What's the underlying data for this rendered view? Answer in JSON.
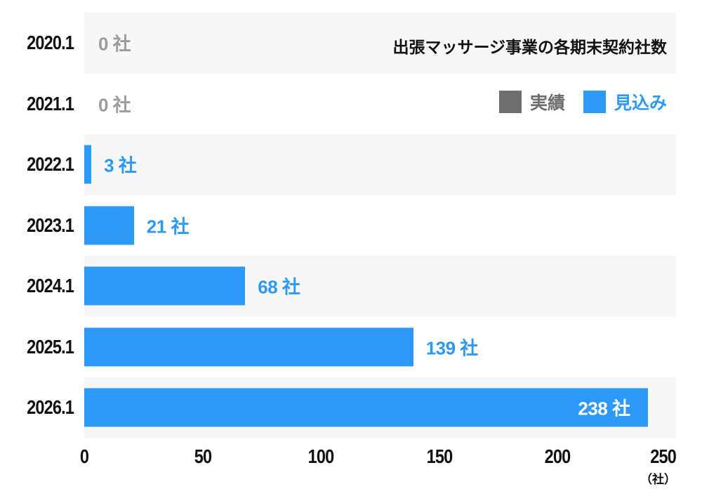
{
  "chart_data": {
    "type": "bar",
    "orientation": "horizontal",
    "title": "出張マッサージ事業の各期末契約社数",
    "categories": [
      "2020.1",
      "2021.1",
      "2022.1",
      "2023.1",
      "2024.1",
      "2025.1",
      "2026.1"
    ],
    "values": [
      0,
      0,
      3,
      21,
      68,
      139,
      238
    ],
    "value_labels": [
      "0 社",
      "0 社",
      "3 社",
      "21 社",
      "68 社",
      "139 社",
      "238 社"
    ],
    "label_styles": [
      "muted",
      "muted",
      "accent",
      "accent",
      "accent",
      "accent",
      "inside"
    ],
    "series_name": "見込み",
    "legend": [
      {
        "label": "実績",
        "color": "#6e6e6e"
      },
      {
        "label": "見込み",
        "color": "#2b99f5"
      }
    ],
    "xlabel": "（社）",
    "xlim": [
      0,
      250
    ],
    "x_ticks": [
      0,
      50,
      100,
      150,
      200,
      250
    ],
    "x_tick_labels": [
      "0",
      "50",
      "100",
      "150",
      "200",
      "250"
    ],
    "bar_color": "#2b99f5",
    "stripe_color": "#f7f7f7",
    "grid": false,
    "legend_position": "top-right"
  }
}
